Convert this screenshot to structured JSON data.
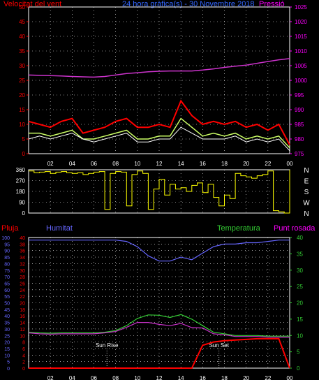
{
  "header": {
    "wind_label": "Velocitat del vent",
    "date_label": "24 hora gràfica(s) - 30 Novembre 2018",
    "pressure_label": "Pressió"
  },
  "colors": {
    "background": "#000000",
    "gust": "#ff0000",
    "wind": "#ffffff",
    "avg_wind": "#ccff66",
    "pressure": "#cc33cc",
    "direction": "#ffff00",
    "rain": "#ff0000",
    "humidity": "#6666ff",
    "temperature": "#33cc33",
    "dewpoint": "#cc33cc",
    "axis_left": "#ff0000",
    "axis_right": "#ff00ff",
    "grid": "#ffffff"
  },
  "chart_data": [
    {
      "id": "wind",
      "type": "line",
      "title": "Velocitat del vent",
      "ylim": [
        0,
        50
      ],
      "yticks": [
        0,
        5,
        10,
        15,
        20,
        25,
        30,
        35,
        40,
        45,
        50
      ],
      "y2label": "Pressió",
      "y2lim": [
        975,
        1025
      ],
      "y2ticks": [
        975,
        980,
        985,
        990,
        995,
        1000,
        1005,
        1010,
        1015,
        1020,
        1025
      ],
      "x": [
        0,
        1,
        2,
        3,
        4,
        5,
        6,
        7,
        8,
        9,
        10,
        11,
        12,
        13,
        14,
        15,
        16,
        17,
        18,
        19,
        20,
        21,
        22,
        23,
        24
      ],
      "xtick_labels": [
        "02",
        "04",
        "06",
        "08",
        "10",
        "12",
        "14",
        "16",
        "18",
        "20",
        "22",
        "00"
      ],
      "xtick_hours": [
        2,
        4,
        6,
        8,
        10,
        12,
        14,
        16,
        18,
        20,
        22,
        24
      ],
      "grid": true,
      "series": [
        {
          "name": "gust",
          "values": [
            11,
            10,
            9,
            11,
            12,
            7,
            8,
            9,
            11,
            12,
            9,
            9,
            10,
            9,
            18,
            13,
            10,
            11,
            10,
            11,
            9,
            10,
            8,
            10,
            3
          ]
        },
        {
          "name": "wind",
          "values": [
            5,
            6,
            5,
            6,
            7,
            5,
            4,
            5,
            6,
            7,
            4,
            4,
            5,
            5,
            9,
            7,
            5,
            5,
            5,
            6,
            4,
            5,
            4,
            5,
            1
          ]
        },
        {
          "name": "average",
          "values": [
            7,
            7,
            6,
            7,
            8,
            5,
            5,
            6,
            7,
            8,
            5,
            5,
            6,
            6,
            12,
            9,
            6,
            7,
            6,
            7,
            5,
            6,
            5,
            6,
            2
          ]
        },
        {
          "name": "pressure",
          "axis": "right",
          "values": [
            1001.8,
            1001.7,
            1001.6,
            1001.5,
            1001.3,
            1001.2,
            1001.1,
            1001.3,
            1001.8,
            1002.3,
            1002.6,
            1002.9,
            1003.1,
            1003.2,
            1003.2,
            1003.2,
            1003.5,
            1003.9,
            1004.4,
            1004.8,
            1005.2,
            1005.8,
            1006.4,
            1007.0,
            1007.4
          ]
        }
      ]
    },
    {
      "id": "direction",
      "type": "line",
      "ylim": [
        0,
        360
      ],
      "yticks": [
        0,
        90,
        180,
        270,
        360
      ],
      "y2tick_labels": [
        "N",
        "W",
        "S",
        "E",
        "N"
      ],
      "x": [
        0,
        0.5,
        1,
        1.5,
        2,
        2.5,
        3,
        3.5,
        4,
        4.5,
        5,
        5.5,
        6,
        6.5,
        7,
        7.5,
        8,
        8.5,
        9,
        9.5,
        10,
        10.5,
        11,
        11.5,
        12,
        12.5,
        13,
        13.5,
        14,
        14.5,
        15,
        15.5,
        16,
        16.5,
        17,
        17.5,
        18,
        18.5,
        19,
        19.5,
        20,
        20.5,
        21,
        21.5,
        22,
        22.5,
        23,
        23.5,
        24
      ],
      "grid": true,
      "series": [
        {
          "name": "direction",
          "values": [
            350,
            335,
            340,
            345,
            330,
            340,
            345,
            335,
            330,
            335,
            320,
            330,
            340,
            345,
            30,
            330,
            345,
            340,
            60,
            320,
            350,
            330,
            30,
            200,
            280,
            150,
            240,
            200,
            210,
            180,
            230,
            250,
            170,
            240,
            130,
            60,
            150,
            120,
            330,
            310,
            300,
            290,
            310,
            320,
            350,
            20,
            10,
            0,
            360
          ]
        }
      ]
    },
    {
      "id": "rain-humidity-temperature",
      "type": "line",
      "ylabel_left": "Pluja",
      "ylim_left": [
        0,
        40
      ],
      "yticks_left": [
        0,
        2,
        4,
        6,
        8,
        10,
        12,
        14,
        16,
        18,
        20,
        22,
        24,
        26,
        28,
        30,
        32,
        34,
        36,
        38,
        40
      ],
      "ylabel_humidity": "Humitat",
      "ylim_humidity": [
        0,
        100
      ],
      "yticks_humidity": [
        0,
        5,
        10,
        15,
        20,
        25,
        30,
        35,
        40,
        45,
        50,
        55,
        60,
        65,
        70,
        75,
        80,
        85,
        90,
        95,
        100
      ],
      "ylabel_right": "Temperatura",
      "ylabel_right2": "Punt rosada",
      "ylim_right": [
        0,
        40
      ],
      "yticks_right": [
        0,
        5,
        10,
        15,
        20,
        25,
        30,
        35,
        40
      ],
      "x": [
        0,
        1,
        2,
        3,
        4,
        5,
        6,
        7,
        8,
        9,
        10,
        11,
        12,
        13,
        14,
        15,
        16,
        17,
        18,
        19,
        20,
        21,
        22,
        23,
        24
      ],
      "xtick_labels": [
        "02",
        "04",
        "06",
        "08",
        "10",
        "12",
        "14",
        "16",
        "18",
        "20",
        "22",
        "00"
      ],
      "xtick_hours": [
        2,
        4,
        6,
        8,
        10,
        12,
        14,
        16,
        18,
        20,
        22,
        24
      ],
      "annotations": [
        {
          "text": "Sun Rise",
          "hour": 7.2
        },
        {
          "text": "Sun Set",
          "hour": 17.5
        }
      ],
      "grid": true,
      "series": [
        {
          "name": "Humitat",
          "axis": "humidity",
          "values": [
            98,
            98,
            98,
            98,
            98,
            98,
            98,
            98,
            98,
            97,
            93,
            86,
            82,
            82,
            85,
            83,
            88,
            93,
            95,
            95,
            96,
            96,
            97,
            98,
            98
          ]
        },
        {
          "name": "Temperatura",
          "axis": "right",
          "values": [
            11,
            10.8,
            10.7,
            10.8,
            10.8,
            10.8,
            10.8,
            11,
            11.5,
            13,
            15.2,
            16.3,
            16.2,
            15.5,
            16.4,
            15,
            13,
            11,
            10.5,
            10,
            10,
            10,
            9.8,
            9.8,
            9.8
          ]
        },
        {
          "name": "Punt rosada",
          "axis": "right",
          "values": [
            10.8,
            10.5,
            10.4,
            10.5,
            10.5,
            10.5,
            10.5,
            10.8,
            11.2,
            12.5,
            14,
            14,
            13.4,
            13,
            13.7,
            12.4,
            12.3,
            10.5,
            10.2,
            9.7,
            9.7,
            9.7,
            9.5,
            9.5,
            9.5
          ]
        },
        {
          "name": "Pluja",
          "axis": "left",
          "values": [
            0,
            0,
            0,
            0,
            0,
            0,
            0,
            0,
            0,
            0,
            0,
            0,
            0,
            0,
            0,
            0,
            7,
            8,
            8.4,
            8.6,
            8.8,
            9.0,
            9.0,
            9.0,
            0
          ]
        }
      ]
    }
  ]
}
